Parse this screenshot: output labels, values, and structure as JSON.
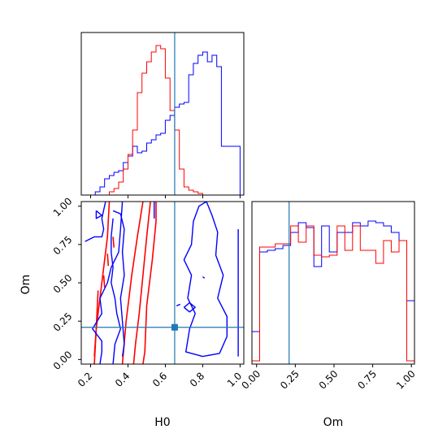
{
  "chart_data": {
    "type": "corner",
    "axis_labels": {
      "H0": "H0",
      "Om": "Om"
    },
    "colors": {
      "series_a": "#0000ff",
      "series_b": "#ff0000",
      "truth": "#1f77b4"
    },
    "truth": {
      "H0": 0.65,
      "Om": 0.21
    },
    "panels": [
      {
        "name": "hist-H0",
        "type": "step-histogram",
        "xlim": [
          0.15,
          1.02
        ],
        "ylim": [
          0,
          1.0
        ],
        "bin_edges": [
          0.15,
          0.175,
          0.2,
          0.225,
          0.25,
          0.275,
          0.3,
          0.325,
          0.35,
          0.375,
          0.4,
          0.425,
          0.45,
          0.475,
          0.5,
          0.525,
          0.55,
          0.575,
          0.6,
          0.625,
          0.65,
          0.675,
          0.7,
          0.725,
          0.75,
          0.775,
          0.8,
          0.825,
          0.85,
          0.875,
          0.9,
          0.925,
          0.95,
          0.975,
          1.0
        ],
        "series": [
          {
            "color_key": "series_a",
            "counts": [
              0,
              0,
              0,
              0.02,
              0.05,
              0.1,
              0.12,
              0.14,
              0.15,
              0.2,
              0.24,
              0.3,
              0.26,
              0.27,
              0.32,
              0.34,
              0.37,
              0.38,
              0.46,
              0.49,
              0.54,
              0.56,
              0.57,
              0.74,
              0.81,
              0.86,
              0.88,
              0.82,
              0.86,
              0.79,
              0.3,
              0.3,
              0.3,
              0.3
            ]
          },
          {
            "color_key": "series_b",
            "counts": [
              0,
              0,
              0,
              0,
              0,
              0,
              0.02,
              0.04,
              0.08,
              0.16,
              0.25,
              0.4,
              0.63,
              0.75,
              0.82,
              0.88,
              0.92,
              0.9,
              0.72,
              0.52,
              0.4,
              0.16,
              0.05,
              0.03,
              0.02,
              0.01,
              0,
              0,
              0,
              0,
              0,
              0,
              0,
              0
            ]
          }
        ]
      },
      {
        "name": "contour-H0-Om",
        "type": "contour",
        "xlim": [
          0.15,
          1.02
        ],
        "ylim": [
          -0.03,
          1.03
        ],
        "xticks": [
          {
            "value": 0.2,
            "label": "0.2"
          },
          {
            "value": 0.4,
            "label": "0.4"
          },
          {
            "value": 0.6,
            "label": "0.6"
          },
          {
            "value": 0.8,
            "label": "0.8"
          },
          {
            "value": 1.0,
            "label": "1.0"
          }
        ],
        "yticks": [
          {
            "value": 0.0,
            "label": "0.00"
          },
          {
            "value": 0.25,
            "label": "0.25"
          },
          {
            "value": 0.5,
            "label": "0.50"
          },
          {
            "value": 0.75,
            "label": "0.75"
          },
          {
            "value": 1.0,
            "label": "1.00"
          }
        ],
        "contours": [
          {
            "color_key": "series_b",
            "points": [
              [
                0.55,
                1.03
              ],
              [
                0.55,
                0.9
              ],
              [
                0.53,
                0.65
              ],
              [
                0.5,
                0.35
              ],
              [
                0.49,
                0.05
              ],
              [
                0.48,
                -0.03
              ]
            ]
          },
          {
            "color_key": "series_b",
            "points": [
              [
                0.52,
                1.03
              ],
              [
                0.5,
                0.8
              ],
              [
                0.48,
                0.55
              ],
              [
                0.46,
                0.3
              ],
              [
                0.44,
                0.1
              ],
              [
                0.43,
                -0.03
              ]
            ]
          },
          {
            "color_key": "series_b",
            "points": [
              [
                0.48,
                1.03
              ],
              [
                0.45,
                0.8
              ],
              [
                0.42,
                0.55
              ],
              [
                0.39,
                0.25
              ],
              [
                0.37,
                -0.03
              ]
            ]
          },
          {
            "color_key": "series_b",
            "points": [
              [
                0.3,
                1.03
              ],
              [
                0.29,
                0.8
              ],
              [
                0.27,
                0.6
              ],
              [
                0.25,
                0.4
              ],
              [
                0.23,
                0.2
              ],
              [
                0.22,
                -0.03
              ]
            ]
          },
          {
            "color_key": "series_b",
            "points": [
              [
                0.22,
                0.02
              ],
              [
                0.23,
                0.2
              ],
              [
                0.24,
                0.45
              ]
            ]
          },
          {
            "color_key": "series_b",
            "points": [
              [
                0.27,
                0.55
              ],
              [
                0.275,
                0.47
              ]
            ]
          },
          {
            "color_key": "series_b",
            "points": [
              [
                0.29,
                0.69
              ],
              [
                0.295,
                0.61
              ]
            ]
          },
          {
            "color_key": "series_b",
            "points": [
              [
                0.32,
                0.8
              ],
              [
                0.325,
                0.73
              ]
            ]
          },
          {
            "color_key": "series_a",
            "points": [
              [
                0.17,
                0.77
              ],
              [
                0.22,
                0.8
              ],
              [
                0.26,
                0.8
              ],
              [
                0.27,
                0.85
              ],
              [
                0.26,
                0.92
              ],
              [
                0.28,
                1.03
              ]
            ]
          },
          {
            "color_key": "series_a",
            "points": [
              [
                0.37,
                1.03
              ],
              [
                0.36,
                0.85
              ],
              [
                0.35,
                0.7
              ],
              [
                0.31,
                0.6
              ],
              [
                0.29,
                0.5
              ],
              [
                0.25,
                0.4
              ],
              [
                0.26,
                0.3
              ],
              [
                0.21,
                0.2
              ],
              [
                0.26,
                0.12
              ],
              [
                0.26,
                0.05
              ],
              [
                0.25,
                -0.03
              ]
            ]
          },
          {
            "color_key": "series_a",
            "points": [
              [
                0.32,
                0.92
              ],
              [
                0.31,
                0.8
              ],
              [
                0.31,
                0.7
              ],
              [
                0.32,
                0.6
              ],
              [
                0.31,
                0.5
              ],
              [
                0.33,
                0.4
              ],
              [
                0.34,
                0.3
              ],
              [
                0.36,
                0.2
              ],
              [
                0.33,
                0.1
              ],
              [
                0.32,
                -0.03
              ]
            ]
          },
          {
            "color_key": "series_a",
            "points": [
              [
                0.32,
                0.97
              ],
              [
                0.36,
                0.95
              ],
              [
                0.38,
                0.85
              ],
              [
                0.37,
                0.7
              ],
              [
                0.38,
                0.55
              ],
              [
                0.36,
                0.4
              ],
              [
                0.37,
                0.25
              ],
              [
                0.38,
                0.1
              ],
              [
                0.37,
                0.02
              ]
            ]
          },
          {
            "color_key": "series_a",
            "points": [
              [
                0.23,
                0.97
              ],
              [
                0.26,
                0.94
              ],
              [
                0.23,
                0.92
              ],
              [
                0.23,
                0.97
              ]
            ]
          },
          {
            "color_key": "series_a",
            "points": [
              [
                0.82,
                1.03
              ],
              [
                0.85,
                0.94
              ],
              [
                0.88,
                0.83
              ],
              [
                0.87,
                0.68
              ],
              [
                0.91,
                0.55
              ],
              [
                0.88,
                0.4
              ],
              [
                0.93,
                0.28
              ],
              [
                0.93,
                0.15
              ],
              [
                0.89,
                0.04
              ],
              [
                0.8,
                0.02
              ],
              [
                0.71,
                0.05
              ],
              [
                0.73,
                0.2
              ],
              [
                0.76,
                0.3
              ],
              [
                0.72,
                0.4
              ],
              [
                0.74,
                0.55
              ],
              [
                0.7,
                0.65
              ],
              [
                0.74,
                0.75
              ],
              [
                0.75,
                0.9
              ],
              [
                0.78,
                1.0
              ],
              [
                0.82,
                1.03
              ]
            ]
          },
          {
            "color_key": "series_a",
            "points": [
              [
                0.99,
                0.85
              ],
              [
                0.99,
                0.55
              ],
              [
                0.99,
                0.2
              ],
              [
                0.99,
                0.02
              ]
            ]
          },
          {
            "color_key": "series_a",
            "points": [
              [
                0.7,
                0.34
              ],
              [
                0.73,
                0.37
              ],
              [
                0.76,
                0.34
              ],
              [
                0.73,
                0.31
              ],
              [
                0.7,
                0.34
              ]
            ]
          },
          {
            "color_key": "series_a",
            "points": [
              [
                0.8,
                0.54
              ],
              [
                0.81,
                0.53
              ]
            ]
          },
          {
            "color_key": "series_a",
            "points": [
              [
                0.66,
                0.35
              ],
              [
                0.68,
                0.36
              ]
            ]
          },
          {
            "color_key": "series_a",
            "points": [
              [
                0.54,
                1.03
              ],
              [
                0.54,
                0.92
              ]
            ]
          }
        ]
      },
      {
        "name": "hist-Om",
        "type": "step-histogram",
        "xlim": [
          -0.03,
          1.02
        ],
        "ylim": [
          0,
          1.0
        ],
        "xticks": [
          {
            "value": 0.0,
            "label": "0.00"
          },
          {
            "value": 0.25,
            "label": "0.25"
          },
          {
            "value": 0.5,
            "label": "0.50"
          },
          {
            "value": 0.75,
            "label": "0.75"
          },
          {
            "value": 1.0,
            "label": "1.00"
          }
        ],
        "bin_edges": [
          -0.03,
          0.02,
          0.07,
          0.12,
          0.17,
          0.22,
          0.27,
          0.32,
          0.37,
          0.42,
          0.47,
          0.52,
          0.57,
          0.62,
          0.67,
          0.72,
          0.77,
          0.82,
          0.87,
          0.92,
          0.97,
          1.02
        ],
        "series": [
          {
            "color_key": "series_a",
            "counts": [
              0.2,
              0.69,
              0.7,
              0.71,
              0.73,
              0.81,
              0.87,
              0.84,
              0.6,
              0.85,
              0.69,
              0.81,
              0.81,
              0.87,
              0.85,
              0.88,
              0.87,
              0.85,
              0.81,
              0.76,
              0.39
            ]
          },
          {
            "color_key": "series_b",
            "counts": [
              0.02,
              0.72,
              0.72,
              0.74,
              0.74,
              0.85,
              0.75,
              0.85,
              0.67,
              0.66,
              0.67,
              0.85,
              0.7,
              0.85,
              0.7,
              0.7,
              0.62,
              0.76,
              0.69,
              0.76,
              0.02
            ]
          }
        ]
      }
    ]
  }
}
